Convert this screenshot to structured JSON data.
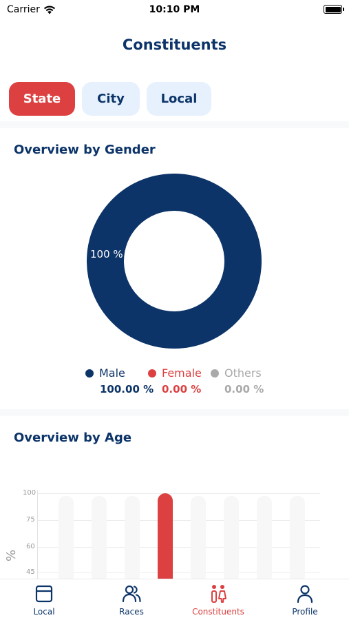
{
  "status_bar": {
    "carrier": "Carrier",
    "time": "10:10 PM",
    "wifi_icon": "wifi-icon",
    "battery_icon": "battery-icon"
  },
  "header": {
    "title": "Constituents"
  },
  "tabs": [
    {
      "label": "State",
      "active": true
    },
    {
      "label": "City",
      "active": false
    },
    {
      "label": "Local",
      "active": false
    }
  ],
  "gender_section": {
    "title": "Overview by Gender",
    "donut_label": "100 %",
    "legend": [
      {
        "label": "Male",
        "value": "100.00 %",
        "color": "#0c3468"
      },
      {
        "label": "Female",
        "value": "0.00 %",
        "color": "#dc4040"
      },
      {
        "label": "Others",
        "value": "0.00 %",
        "color": "#a9a9a9"
      }
    ]
  },
  "age_section": {
    "title": "Overview by Age"
  },
  "chart_data": [
    {
      "type": "pie",
      "labels": [
        "Male",
        "Female",
        "Others"
      ],
      "values": [
        100.0,
        0.0,
        0.0
      ],
      "slice_label": "100 %"
    },
    {
      "type": "bar",
      "ylabel": "%",
      "yticks": [
        "100",
        "75",
        "60",
        "45"
      ],
      "ylim": [
        45,
        100
      ],
      "bar_count": 8,
      "highlighted_index": 3,
      "highlighted_value": 100,
      "highlight_color": "#dc4040"
    }
  ],
  "tab_bar": {
    "items": [
      {
        "label": "Local",
        "icon": "window-icon",
        "active": false
      },
      {
        "label": "Races",
        "icon": "people-icon",
        "active": false
      },
      {
        "label": "Constituents",
        "icon": "constituents-icon",
        "active": true
      },
      {
        "label": "Profile",
        "icon": "person-icon",
        "active": false
      }
    ]
  }
}
